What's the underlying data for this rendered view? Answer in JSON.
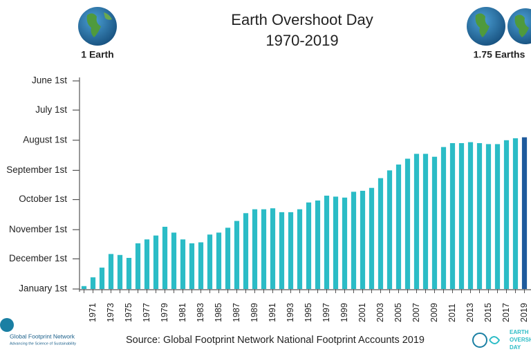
{
  "chart_data": {
    "type": "bar",
    "title": "Earth Overshoot Day",
    "subtitle": "1970-2019",
    "left_label": "1 Earth",
    "right_label": "1.75 Earths",
    "source": "Source: Global Footprint Network National Footprint Accounts 2019",
    "logo_left": {
      "name": "Global Footprint Network",
      "tagline": "Advancing the Science of Sustainability"
    },
    "logo_right": [
      "EARTH",
      "OVERSHOOT",
      "DAY"
    ],
    "categories": [
      null,
      "1971",
      null,
      "1973",
      null,
      "1975",
      null,
      "1977",
      null,
      "1979",
      null,
      "1981",
      null,
      "1983",
      null,
      "1985",
      null,
      "1987",
      null,
      "1989",
      null,
      "1991",
      null,
      "1993",
      null,
      "1995",
      null,
      "1997",
      null,
      "1999",
      null,
      "2001",
      null,
      "2003",
      null,
      "2005",
      null,
      "2007",
      null,
      "2009",
      null,
      "2011",
      null,
      "2013",
      null,
      "2015",
      null,
      "2017",
      null,
      "2019"
    ],
    "values": [
      363,
      354,
      344,
      330,
      331,
      334,
      319,
      315,
      311,
      302,
      308,
      315,
      319,
      318,
      310,
      308,
      303,
      296,
      288,
      284,
      284,
      283,
      287,
      287,
      284,
      277,
      275,
      270,
      271,
      272,
      266,
      265,
      262,
      252,
      244,
      238,
      232,
      227,
      227,
      230,
      220,
      216,
      216,
      215,
      216,
      217,
      217,
      213,
      211,
      210
    ],
    "colors": [
      "#2bbcc6",
      "#2bbcc6",
      "#2bbcc6",
      "#2bbcc6",
      "#2bbcc6",
      "#2bbcc6",
      "#2bbcc6",
      "#2bbcc6",
      "#2bbcc6",
      "#2bbcc6",
      "#2bbcc6",
      "#2bbcc6",
      "#2bbcc6",
      "#2bbcc6",
      "#2bbcc6",
      "#2bbcc6",
      "#2bbcc6",
      "#2bbcc6",
      "#2bbcc6",
      "#2bbcc6",
      "#2bbcc6",
      "#2bbcc6",
      "#2bbcc6",
      "#2bbcc6",
      "#2bbcc6",
      "#2bbcc6",
      "#2bbcc6",
      "#2bbcc6",
      "#2bbcc6",
      "#2bbcc6",
      "#2bbcc6",
      "#2bbcc6",
      "#2bbcc6",
      "#2bbcc6",
      "#2bbcc6",
      "#2bbcc6",
      "#2bbcc6",
      "#2bbcc6",
      "#2bbcc6",
      "#2bbcc6",
      "#2bbcc6",
      "#2bbcc6",
      "#2bbcc6",
      "#2bbcc6",
      "#2bbcc6",
      "#2bbcc6",
      "#2bbcc6",
      "#2bbcc6",
      "#2bbcc6",
      "#1e5a9c"
    ],
    "ylim": [
      366,
      152
    ],
    "yticks": [
      {
        "value": 366,
        "label": "January 1st"
      },
      {
        "value": 335,
        "label": "December 1st"
      },
      {
        "value": 305,
        "label": "November 1st"
      },
      {
        "value": 274,
        "label": "October 1st"
      },
      {
        "value": 244,
        "label": "September 1st"
      },
      {
        "value": 213,
        "label": "August 1st"
      },
      {
        "value": 182,
        "label": "July 1st"
      },
      {
        "value": 152,
        "label": "June 1st"
      }
    ],
    "grid": false
  }
}
